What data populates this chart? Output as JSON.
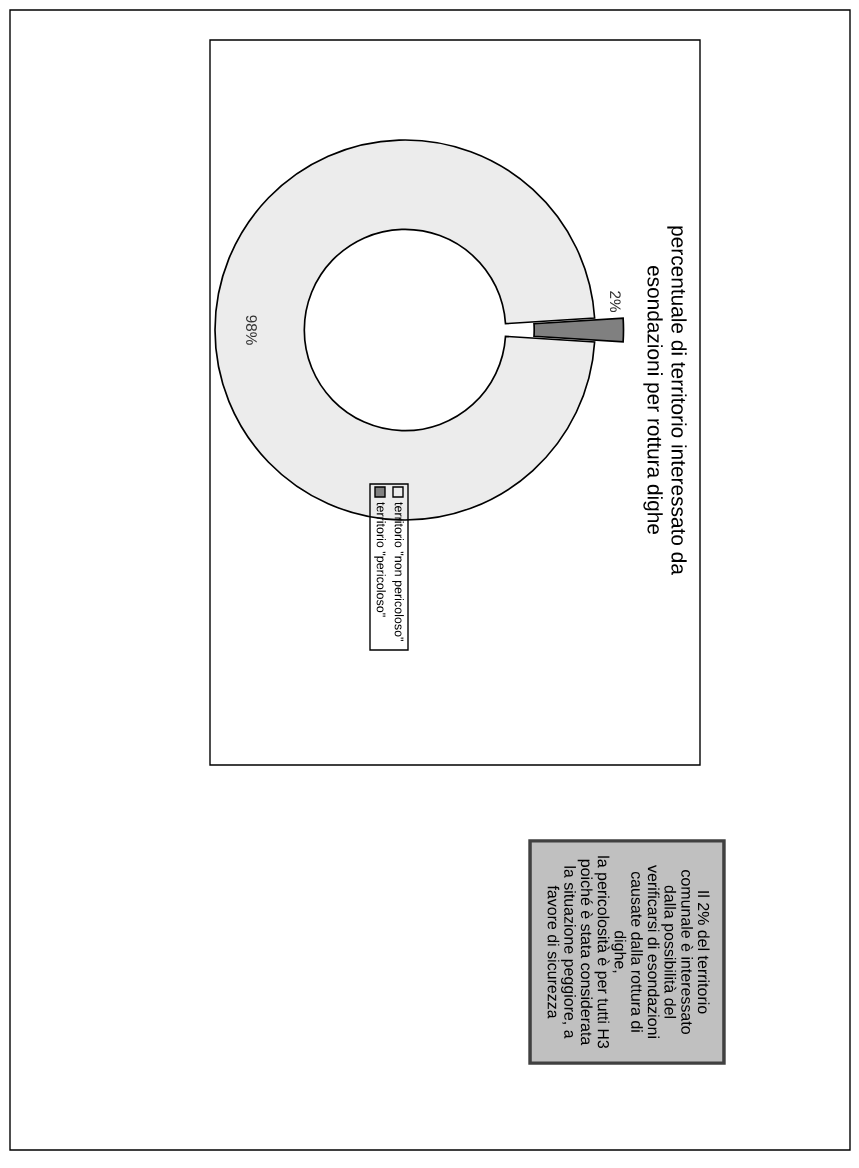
{
  "chart_data": {
    "type": "donut",
    "title": "percentuale di territorio interessato da\nesondazioni per rottura dighe",
    "categories": [
      "territorio \"non pericoloso\"",
      "territorio \"pericoloso\""
    ],
    "values": [
      98,
      2
    ],
    "colors": [
      "#ececec",
      "#808080"
    ],
    "value_labels": [
      "98%",
      "2%"
    ],
    "legend": "bottom",
    "annotations": [
      "Il 2% del territorio\ncomunale è interessato\ndalla possibilità del\nverificarsi di esondazioni\ncausate dalla rottura di\ndighe,\nla pericolosità è per tutti H3\npoiché è stata considerata\nla situazione peggiore, a\nfavore di sicurezza"
    ]
  }
}
